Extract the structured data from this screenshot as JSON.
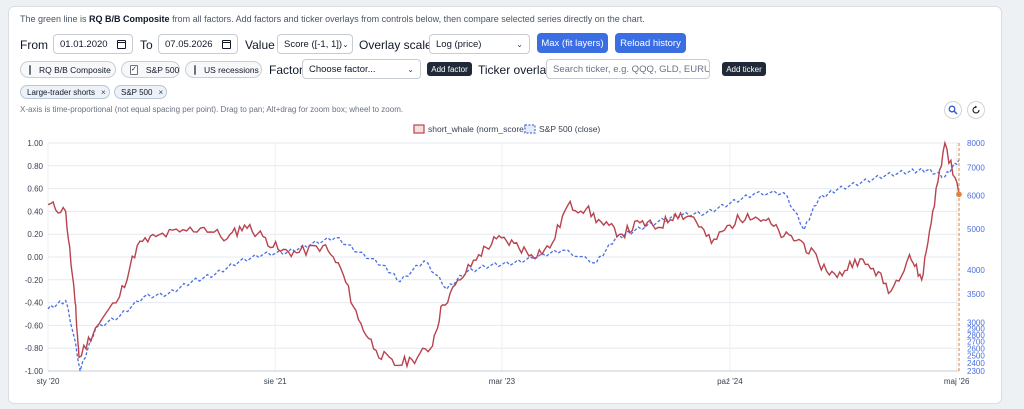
{
  "intro": {
    "prefix": "The green line is ",
    "bold": "RQ B/B Composite",
    "suffix": " from all factors. Add factors and ticker overlays from controls below, then compare selected series directly on the chart."
  },
  "controls": {
    "from_label": "From",
    "from_value": "01.01.2020",
    "to_label": "To",
    "to_value": "07.05.2026",
    "value_label": "Value",
    "value_select": "Score ([-1, 1])",
    "overlay_label": "Overlay scale",
    "overlay_select": "Log (price)",
    "max_button": "Max (fit layers)",
    "reload_button": "Reload history"
  },
  "row2": {
    "toggles": [
      {
        "label": "RQ B/B Composite",
        "checked": false
      },
      {
        "label": "S&P 500",
        "checked": true
      },
      {
        "label": "US recessions",
        "checked": false
      }
    ],
    "factor_label": "Factor",
    "factor_select": "Choose factor...",
    "add_factor": "Add factor",
    "ticker_label": "Ticker overlay",
    "ticker_placeholder": "Search ticker, e.g. QQQ, GLD, EURUSD",
    "add_ticker": "Add ticker"
  },
  "tags": [
    {
      "label": "Large-trader shorts",
      "close": "×"
    },
    {
      "label": "S&P 500",
      "close": "×"
    }
  ],
  "hint": "X-axis is time-proportional (not equal spacing per point). Drag to pan; Alt+drag for zoom box; wheel to zoom.",
  "icons": {
    "zoom": "zoom-icon",
    "reset": "reset-icon"
  },
  "chart_data": {
    "type": "line",
    "legend_position": "top-center",
    "grid": true,
    "x_ticks": [
      "sty '20",
      "sie '21",
      "mar '23",
      "paź '24",
      "maj '26"
    ],
    "x_range": [
      "2020-01-01",
      "2026-05-07"
    ],
    "y_left": {
      "ticks": [
        "1.00",
        "0.80",
        "0.60",
        "0.40",
        "0.20",
        "0.00",
        "-0.20",
        "-0.40",
        "-0.60",
        "-0.80",
        "-1.00"
      ],
      "range": [
        -1,
        1
      ]
    },
    "y_right": {
      "scale": "log",
      "ticks": [
        "8000",
        "7000",
        "6000",
        "5000",
        "4000",
        "3500",
        "3000",
        "2900",
        "2800",
        "2700",
        "2600",
        "2500",
        "2400",
        "2300"
      ],
      "range": [
        2300,
        8000
      ]
    },
    "series": [
      {
        "name": "short_whale (norm_score)",
        "color": "#b8434e",
        "axis": "left",
        "x": [
          "2020-01-01",
          "2020-02-15",
          "2020-03-10",
          "2020-03-20",
          "2020-05-01",
          "2020-07-01",
          "2020-08-15",
          "2020-10-01",
          "2020-12-01",
          "2021-02-01",
          "2021-04-01",
          "2021-05-15",
          "2021-07-01",
          "2021-08-15",
          "2021-10-01",
          "2021-12-01",
          "2022-01-15",
          "2022-03-01",
          "2022-04-15",
          "2022-06-01",
          "2022-07-15",
          "2022-09-01",
          "2022-10-01",
          "2022-11-15",
          "2023-01-01",
          "2023-02-15",
          "2023-04-01",
          "2023-05-15",
          "2023-07-01",
          "2023-08-15",
          "2023-10-01",
          "2023-11-15",
          "2024-01-01",
          "2024-02-15",
          "2024-04-01",
          "2024-05-15",
          "2024-07-01",
          "2024-08-15",
          "2024-10-01",
          "2024-11-15",
          "2025-01-01",
          "2025-02-15",
          "2025-04-01",
          "2025-05-15",
          "2025-07-01",
          "2025-08-15",
          "2025-10-01",
          "2025-11-15",
          "2026-01-01",
          "2026-02-01",
          "2026-03-01",
          "2026-04-01",
          "2026-05-07"
        ],
        "y": [
          0.46,
          0.4,
          -0.4,
          -0.88,
          -0.62,
          -0.35,
          0.1,
          0.18,
          0.22,
          0.26,
          0.16,
          0.28,
          0.18,
          0.05,
          0.04,
          0.1,
          -0.1,
          -0.55,
          -0.82,
          -0.95,
          -0.9,
          -0.8,
          -0.42,
          -0.2,
          0.02,
          0.16,
          0.12,
          0.02,
          0.08,
          0.45,
          0.42,
          0.28,
          0.2,
          0.3,
          0.26,
          0.38,
          0.35,
          0.12,
          0.28,
          0.38,
          0.32,
          0.18,
          0.14,
          -0.05,
          -0.18,
          -0.02,
          -0.1,
          -0.3,
          0.02,
          -0.2,
          0.4,
          1.0,
          0.55
        ]
      },
      {
        "name": "S&P 500 (close)",
        "color": "#4a6fe0",
        "axis": "right",
        "x": [
          "2020-01-01",
          "2020-02-15",
          "2020-03-23",
          "2020-05-01",
          "2020-07-01",
          "2020-09-01",
          "2020-11-01",
          "2021-01-01",
          "2021-03-01",
          "2021-05-01",
          "2021-07-01",
          "2021-09-01",
          "2021-11-01",
          "2022-01-01",
          "2022-03-01",
          "2022-05-01",
          "2022-06-15",
          "2022-08-15",
          "2022-10-12",
          "2022-12-01",
          "2023-02-01",
          "2023-04-01",
          "2023-06-01",
          "2023-08-01",
          "2023-10-27",
          "2023-12-15",
          "2024-02-01",
          "2024-04-01",
          "2024-06-01",
          "2024-08-01",
          "2024-10-01",
          "2024-12-01",
          "2025-02-15",
          "2025-04-08",
          "2025-05-15",
          "2025-07-01",
          "2025-09-01",
          "2025-11-01",
          "2026-01-01",
          "2026-02-15",
          "2026-04-01",
          "2026-05-07"
        ],
        "y": [
          3230,
          3380,
          2300,
          2900,
          3100,
          3450,
          3500,
          3750,
          3900,
          4180,
          4350,
          4400,
          4600,
          4770,
          4400,
          4100,
          3750,
          4200,
          3600,
          3950,
          4100,
          4150,
          4300,
          4450,
          4150,
          4750,
          4950,
          5200,
          5400,
          5450,
          5750,
          6050,
          6100,
          4980,
          5900,
          6200,
          6450,
          6700,
          6850,
          6900,
          6650,
          7300
        ]
      }
    ],
    "marker": {
      "x": "2026-05-07",
      "label_color": "#e0803a"
    }
  }
}
